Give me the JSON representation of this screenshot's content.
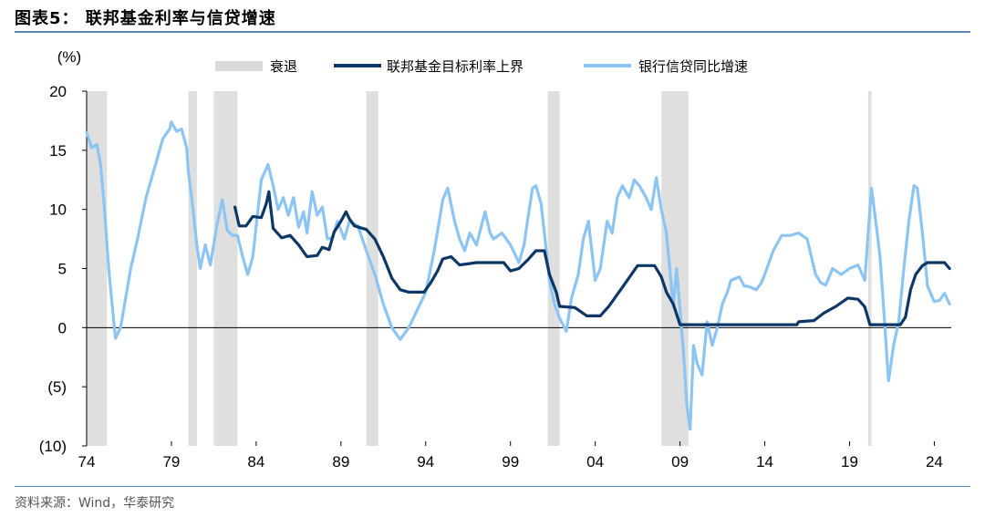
{
  "title": "图表5： 联邦基金利率与信贷增速",
  "source": "资料来源：Wind，华泰研究",
  "chart_data": {
    "type": "line",
    "unit_label": "(%)",
    "ylim": [
      -10,
      20
    ],
    "y_ticks": [
      20,
      15,
      10,
      5,
      0,
      -5,
      -10
    ],
    "y_tick_labels": [
      "20",
      "15",
      "10",
      "5",
      "0",
      "(5)",
      "(10)"
    ],
    "xlim": [
      1974,
      2025
    ],
    "x_ticks": [
      1974,
      1979,
      1984,
      1989,
      1994,
      1999,
      2004,
      2009,
      2014,
      2019,
      2024
    ],
    "x_tick_labels": [
      "74",
      "79",
      "84",
      "89",
      "94",
      "99",
      "04",
      "09",
      "14",
      "19",
      "24"
    ],
    "grid": false,
    "legend_position": "top",
    "legend": [
      "衰退",
      "联邦基金目标利率上界",
      "银行信贷同比增速"
    ],
    "colors": {
      "recession": "#d9d9d9",
      "fed_rate": "#0c3766",
      "credit": "#8cc4f4",
      "axis": "#000000"
    },
    "recessions": [
      [
        1974.0,
        1975.2
      ],
      [
        1980.0,
        1980.5
      ],
      [
        1981.5,
        1982.9
      ],
      [
        1990.5,
        1991.2
      ],
      [
        2001.2,
        2001.9
      ],
      [
        2007.9,
        2009.5
      ],
      [
        2020.1,
        2020.3
      ]
    ],
    "series": [
      {
        "name": "联邦基金目标利率上界",
        "points": [
          [
            1982.75,
            10.2
          ],
          [
            1983.0,
            8.6
          ],
          [
            1983.4,
            8.6
          ],
          [
            1983.8,
            9.4
          ],
          [
            1984.3,
            9.3
          ],
          [
            1984.6,
            10.5
          ],
          [
            1984.75,
            11.5
          ],
          [
            1985.0,
            8.4
          ],
          [
            1985.5,
            7.6
          ],
          [
            1986.0,
            7.8
          ],
          [
            1986.5,
            7.0
          ],
          [
            1987.0,
            6.0
          ],
          [
            1987.6,
            6.1
          ],
          [
            1987.9,
            6.8
          ],
          [
            1988.3,
            6.6
          ],
          [
            1988.6,
            8.1
          ],
          [
            1989.0,
            9.0
          ],
          [
            1989.3,
            9.8
          ],
          [
            1989.5,
            9.2
          ],
          [
            1989.8,
            8.6
          ],
          [
            1990.5,
            8.3
          ],
          [
            1991.0,
            7.5
          ],
          [
            1991.5,
            6.0
          ],
          [
            1992.0,
            4.2
          ],
          [
            1992.5,
            3.2
          ],
          [
            1993.0,
            3.0
          ],
          [
            1993.9,
            3.0
          ],
          [
            1994.3,
            3.8
          ],
          [
            1994.7,
            4.8
          ],
          [
            1995.0,
            5.8
          ],
          [
            1995.5,
            6.0
          ],
          [
            1996.0,
            5.3
          ],
          [
            1997.0,
            5.5
          ],
          [
            1998.6,
            5.5
          ],
          [
            1999.0,
            4.8
          ],
          [
            1999.5,
            5.0
          ],
          [
            2000.0,
            5.7
          ],
          [
            2000.5,
            6.5
          ],
          [
            2001.0,
            6.5
          ],
          [
            2001.3,
            4.5
          ],
          [
            2001.7,
            3.0
          ],
          [
            2001.9,
            1.8
          ],
          [
            2002.8,
            1.7
          ],
          [
            2003.5,
            1.0
          ],
          [
            2004.3,
            1.0
          ],
          [
            2004.8,
            1.8
          ],
          [
            2005.5,
            3.2
          ],
          [
            2006.5,
            5.25
          ],
          [
            2007.5,
            5.25
          ],
          [
            2007.9,
            4.3
          ],
          [
            2008.2,
            3.0
          ],
          [
            2008.6,
            2.0
          ],
          [
            2008.9,
            0.7
          ],
          [
            2009.0,
            0.25
          ],
          [
            2015.9,
            0.25
          ],
          [
            2016.0,
            0.5
          ],
          [
            2016.9,
            0.6
          ],
          [
            2017.5,
            1.25
          ],
          [
            2018.2,
            1.8
          ],
          [
            2018.9,
            2.5
          ],
          [
            2019.5,
            2.4
          ],
          [
            2019.9,
            1.75
          ],
          [
            2020.2,
            0.25
          ],
          [
            2022.0,
            0.25
          ],
          [
            2022.3,
            0.9
          ],
          [
            2022.6,
            3.2
          ],
          [
            2022.9,
            4.5
          ],
          [
            2023.3,
            5.25
          ],
          [
            2023.6,
            5.5
          ],
          [
            2024.6,
            5.5
          ],
          [
            2024.9,
            5.0
          ]
        ]
      },
      {
        "name": "银行信贷同比增速",
        "points": [
          [
            1974.0,
            16.5
          ],
          [
            1974.3,
            15.2
          ],
          [
            1974.6,
            15.5
          ],
          [
            1974.8,
            14.0
          ],
          [
            1975.0,
            11.0
          ],
          [
            1975.3,
            5.0
          ],
          [
            1975.5,
            2.0
          ],
          [
            1975.7,
            -0.9
          ],
          [
            1976.0,
            0.0
          ],
          [
            1976.3,
            2.5
          ],
          [
            1976.6,
            5.0
          ],
          [
            1977.0,
            7.5
          ],
          [
            1977.5,
            11.0
          ],
          [
            1978.0,
            13.5
          ],
          [
            1978.5,
            16.0
          ],
          [
            1978.9,
            16.8
          ],
          [
            1979.0,
            17.4
          ],
          [
            1979.3,
            16.6
          ],
          [
            1979.6,
            16.8
          ],
          [
            1979.9,
            15.2
          ],
          [
            1980.0,
            13.2
          ],
          [
            1980.2,
            11.0
          ],
          [
            1980.5,
            7.0
          ],
          [
            1980.7,
            5.0
          ],
          [
            1981.0,
            7.0
          ],
          [
            1981.3,
            5.3
          ],
          [
            1981.7,
            8.8
          ],
          [
            1982.0,
            10.8
          ],
          [
            1982.3,
            8.2
          ],
          [
            1982.6,
            7.8
          ],
          [
            1982.9,
            7.8
          ],
          [
            1983.2,
            6.0
          ],
          [
            1983.5,
            4.5
          ],
          [
            1983.8,
            6.0
          ],
          [
            1984.0,
            8.6
          ],
          [
            1984.3,
            12.5
          ],
          [
            1984.7,
            13.8
          ],
          [
            1985.0,
            12.0
          ],
          [
            1985.3,
            10.0
          ],
          [
            1985.6,
            11.0
          ],
          [
            1985.9,
            9.5
          ],
          [
            1986.2,
            11.0
          ],
          [
            1986.5,
            8.5
          ],
          [
            1986.8,
            9.8
          ],
          [
            1987.0,
            8.0
          ],
          [
            1987.3,
            11.5
          ],
          [
            1987.6,
            9.5
          ],
          [
            1987.9,
            10.2
          ],
          [
            1988.2,
            7.5
          ],
          [
            1988.5,
            7.6
          ],
          [
            1988.8,
            9.0
          ],
          [
            1989.2,
            7.5
          ],
          [
            1989.5,
            9.0
          ],
          [
            1990.0,
            8.6
          ],
          [
            1990.5,
            6.5
          ],
          [
            1991.0,
            4.5
          ],
          [
            1991.5,
            2.0
          ],
          [
            1992.0,
            0.0
          ],
          [
            1992.5,
            -1.0
          ],
          [
            1993.0,
            0.0
          ],
          [
            1993.5,
            1.5
          ],
          [
            1994.0,
            3.0
          ],
          [
            1994.5,
            6.5
          ],
          [
            1994.8,
            9.0
          ],
          [
            1995.0,
            10.8
          ],
          [
            1995.3,
            11.8
          ],
          [
            1995.7,
            9.0
          ],
          [
            1996.0,
            7.5
          ],
          [
            1996.3,
            6.5
          ],
          [
            1996.6,
            8.0
          ],
          [
            1997.0,
            7.0
          ],
          [
            1997.5,
            9.8
          ],
          [
            1997.8,
            8.0
          ],
          [
            1998.0,
            7.5
          ],
          [
            1998.5,
            8.0
          ],
          [
            1999.0,
            7.0
          ],
          [
            1999.5,
            5.5
          ],
          [
            1999.8,
            7.0
          ],
          [
            2000.0,
            9.0
          ],
          [
            2000.3,
            11.8
          ],
          [
            2000.5,
            12.0
          ],
          [
            2000.8,
            10.5
          ],
          [
            2001.0,
            8.0
          ],
          [
            2001.3,
            4.0
          ],
          [
            2001.6,
            2.0
          ],
          [
            2001.9,
            0.8
          ],
          [
            2002.3,
            -0.3
          ],
          [
            2002.6,
            2.5
          ],
          [
            2003.0,
            4.5
          ],
          [
            2003.3,
            7.5
          ],
          [
            2003.6,
            9.0
          ],
          [
            2004.0,
            4.0
          ],
          [
            2004.3,
            5.0
          ],
          [
            2004.7,
            9.0
          ],
          [
            2005.0,
            8.0
          ],
          [
            2005.3,
            11.0
          ],
          [
            2005.6,
            12.0
          ],
          [
            2006.0,
            11.0
          ],
          [
            2006.3,
            12.5
          ],
          [
            2006.6,
            12.0
          ],
          [
            2007.0,
            11.0
          ],
          [
            2007.3,
            10.0
          ],
          [
            2007.6,
            12.7
          ],
          [
            2007.9,
            10.0
          ],
          [
            2008.2,
            8.0
          ],
          [
            2008.6,
            1.8
          ],
          [
            2008.8,
            5.0
          ],
          [
            2009.0,
            1.5
          ],
          [
            2009.2,
            -2.0
          ],
          [
            2009.4,
            -6.5
          ],
          [
            2009.6,
            -8.6
          ],
          [
            2009.8,
            -1.5
          ],
          [
            2010.0,
            -3.0
          ],
          [
            2010.3,
            -4.0
          ],
          [
            2010.6,
            0.5
          ],
          [
            2010.9,
            -1.5
          ],
          [
            2011.2,
            0.0
          ],
          [
            2011.5,
            2.0
          ],
          [
            2011.8,
            3.0
          ],
          [
            2012.0,
            4.0
          ],
          [
            2012.5,
            4.3
          ],
          [
            2012.8,
            3.5
          ],
          [
            2013.0,
            3.5
          ],
          [
            2013.5,
            3.2
          ],
          [
            2013.8,
            3.8
          ],
          [
            2014.0,
            4.5
          ],
          [
            2014.5,
            6.5
          ],
          [
            2015.0,
            7.8
          ],
          [
            2015.5,
            7.8
          ],
          [
            2016.0,
            8.0
          ],
          [
            2016.5,
            7.5
          ],
          [
            2017.0,
            4.5
          ],
          [
            2017.3,
            3.8
          ],
          [
            2017.6,
            3.6
          ],
          [
            2018.0,
            5.0
          ],
          [
            2018.5,
            4.5
          ],
          [
            2019.0,
            5.0
          ],
          [
            2019.5,
            5.3
          ],
          [
            2019.9,
            4.0
          ],
          [
            2020.1,
            8.0
          ],
          [
            2020.3,
            11.8
          ],
          [
            2020.5,
            9.5
          ],
          [
            2020.8,
            6.0
          ],
          [
            2021.0,
            2.0
          ],
          [
            2021.3,
            -4.5
          ],
          [
            2021.6,
            -1.5
          ],
          [
            2021.9,
            0.5
          ],
          [
            2022.2,
            5.0
          ],
          [
            2022.5,
            9.0
          ],
          [
            2022.8,
            12.0
          ],
          [
            2023.0,
            11.8
          ],
          [
            2023.3,
            8.0
          ],
          [
            2023.6,
            3.5
          ],
          [
            2024.0,
            2.2
          ],
          [
            2024.3,
            2.3
          ],
          [
            2024.6,
            2.9
          ],
          [
            2024.9,
            2.0
          ]
        ]
      }
    ]
  }
}
